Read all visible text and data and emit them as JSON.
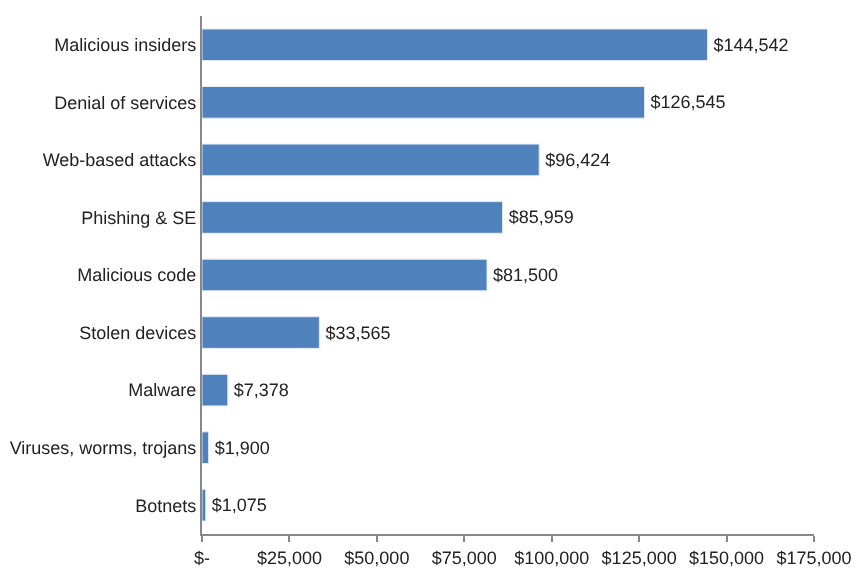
{
  "chart_data": {
    "type": "bar",
    "orientation": "horizontal",
    "categories": [
      "Malicious insiders",
      "Denial of services",
      "Web-based attacks",
      "Phishing & SE",
      "Malicious code",
      "Stolen devices",
      "Malware",
      "Viruses, worms, trojans",
      "Botnets"
    ],
    "values": [
      144542,
      126545,
      96424,
      85959,
      81500,
      33565,
      7378,
      1900,
      1075
    ],
    "value_labels": [
      "$144,542",
      "$126,545",
      "$96,424",
      "$85,959",
      "$81,500",
      "$33,565",
      "$7,378",
      "$1,900",
      "$1,075"
    ],
    "color": "#4f81bd",
    "xlim": [
      0,
      175000
    ],
    "xticks": [
      {
        "value": 0,
        "label": "$-"
      },
      {
        "value": 25000,
        "label": "$25,000"
      },
      {
        "value": 50000,
        "label": "$50,000"
      },
      {
        "value": 75000,
        "label": "$75,000"
      },
      {
        "value": 100000,
        "label": "$100,000"
      },
      {
        "value": 125000,
        "label": "$125,000"
      },
      {
        "value": 150000,
        "label": "$150,000"
      },
      {
        "value": 175000,
        "label": "$175,000"
      }
    ],
    "legend": false
  }
}
